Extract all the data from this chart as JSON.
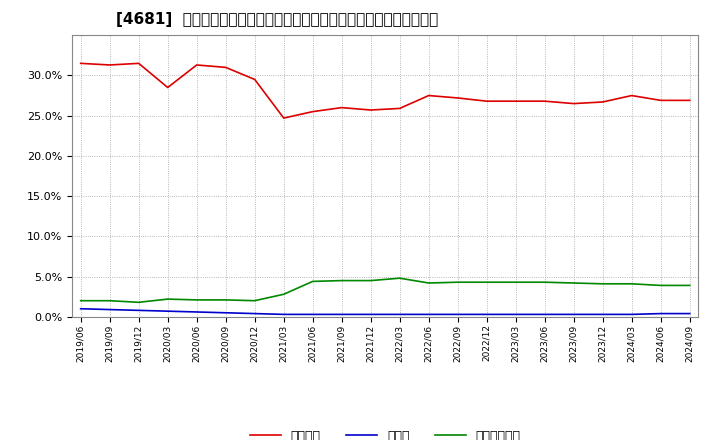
{
  "title": "[4681]  自己資本、のれん、繰延税金資産の総資産に対する比率の推移",
  "x_labels": [
    "2019/06",
    "2019/09",
    "2019/12",
    "2020/03",
    "2020/06",
    "2020/09",
    "2020/12",
    "2021/03",
    "2021/06",
    "2021/09",
    "2021/12",
    "2022/03",
    "2022/06",
    "2022/09",
    "2022/12",
    "2023/03",
    "2023/06",
    "2023/09",
    "2023/12",
    "2024/03",
    "2024/06",
    "2024/09"
  ],
  "equity": [
    31.5,
    31.3,
    31.5,
    28.5,
    31.3,
    31.0,
    29.5,
    24.7,
    25.5,
    26.0,
    25.7,
    25.9,
    27.5,
    27.2,
    26.8,
    26.8,
    26.8,
    26.5,
    26.7,
    27.5,
    26.9,
    26.9
  ],
  "noren": [
    1.0,
    0.9,
    0.8,
    0.7,
    0.6,
    0.5,
    0.4,
    0.3,
    0.3,
    0.3,
    0.3,
    0.3,
    0.3,
    0.3,
    0.3,
    0.3,
    0.3,
    0.3,
    0.3,
    0.3,
    0.4,
    0.4
  ],
  "deferred_tax": [
    2.0,
    2.0,
    1.8,
    2.2,
    2.1,
    2.1,
    2.0,
    2.8,
    4.4,
    4.5,
    4.5,
    4.8,
    4.2,
    4.3,
    4.3,
    4.3,
    4.3,
    4.2,
    4.1,
    4.1,
    3.9,
    3.9
  ],
  "equity_color": "#dd0000",
  "noren_color": "#0000cc",
  "deferred_tax_color": "#008800",
  "legend_labels": [
    "自己資本",
    "のれん",
    "繰延税金資産"
  ],
  "ylim": [
    0,
    35
  ],
  "yticks": [
    0.0,
    5.0,
    10.0,
    15.0,
    20.0,
    25.0,
    30.0
  ],
  "background_color": "#ffffff",
  "plot_bg_color": "#ffffff",
  "grid_color": "#999999",
  "title_fontsize": 11
}
